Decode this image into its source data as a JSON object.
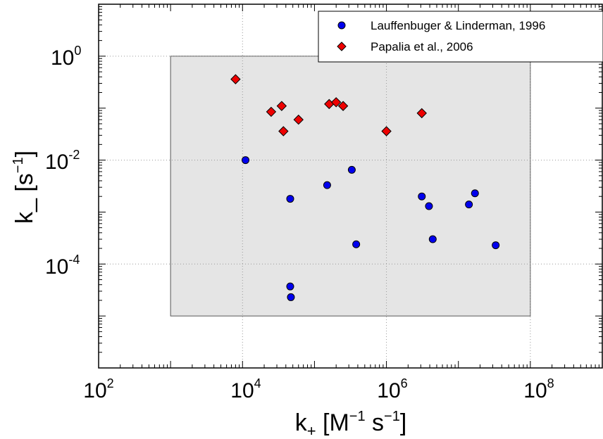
{
  "chart_data": {
    "type": "scatter",
    "xscale": "log",
    "yscale": "log",
    "xlim": [
      100,
      1000000000
    ],
    "ylim": [
      1e-06,
      10
    ],
    "xticks": [
      100,
      10000,
      1000000,
      100000000
    ],
    "yticks": [
      0.0001,
      0.01,
      1
    ],
    "xtick_labels": [
      {
        "base": "10",
        "exp": "2"
      },
      {
        "base": "10",
        "exp": "4"
      },
      {
        "base": "10",
        "exp": "6"
      },
      {
        "base": "10",
        "exp": "8"
      }
    ],
    "ytick_labels": [
      {
        "base": "10",
        "exp": "-4"
      },
      {
        "base": "10",
        "exp": "-2"
      },
      {
        "base": "10",
        "exp": "0"
      }
    ],
    "xlabel": {
      "main": "k",
      "sub": "+",
      "rest1": " [M",
      "sup1": "−1",
      "rest2": " s",
      "sup2": "−1",
      "rest3": "]"
    },
    "ylabel": {
      "main": "k_ [s",
      "sup": "−1",
      "rest": "]"
    },
    "grid": true,
    "legend_position": "top-right",
    "shaded_region": {
      "x": [
        1000,
        100000000
      ],
      "y": [
        1e-05,
        1
      ],
      "color": "#e5e5e5"
    },
    "series": [
      {
        "name": "Lauffenbuger & Linderman, 1996",
        "marker": "circle",
        "color": "#0000ee",
        "points": [
          [
            11000,
            0.01
          ],
          [
            46000,
            0.0018
          ],
          [
            46000,
            3.7e-05
          ],
          [
            47000,
            2.3e-05
          ],
          [
            150000,
            0.0033
          ],
          [
            330000,
            0.0065
          ],
          [
            380000,
            0.00024
          ],
          [
            3100000,
            0.002
          ],
          [
            3900000,
            0.0013
          ],
          [
            4400000,
            0.0003
          ],
          [
            14000000,
            0.0014
          ],
          [
            17000000,
            0.0023
          ],
          [
            33000000,
            0.00023
          ]
        ]
      },
      {
        "name": "Papalia et al., 2006",
        "marker": "diamond",
        "color": "#ee0000",
        "points": [
          [
            8000,
            0.36
          ],
          [
            25000,
            0.085
          ],
          [
            35000,
            0.11
          ],
          [
            37000,
            0.036
          ],
          [
            60000,
            0.06
          ],
          [
            160000,
            0.12
          ],
          [
            200000,
            0.13
          ],
          [
            250000,
            0.11
          ],
          [
            1000000,
            0.036
          ],
          [
            3100000,
            0.08
          ]
        ]
      }
    ]
  }
}
